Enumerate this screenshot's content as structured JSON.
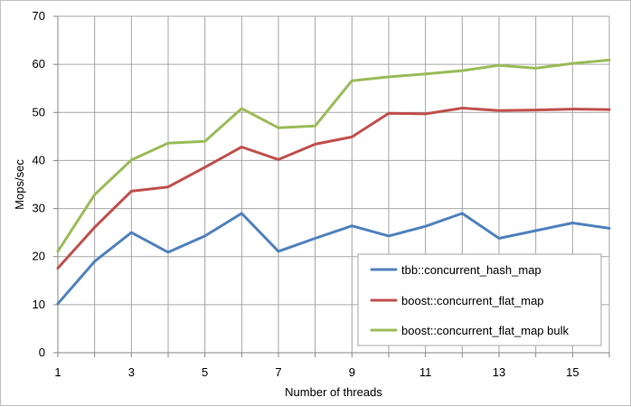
{
  "chart_data": {
    "type": "line",
    "title": "",
    "xlabel": "Number of threads",
    "ylabel": "Mops/sec",
    "x": [
      1,
      2,
      3,
      4,
      5,
      6,
      7,
      8,
      9,
      10,
      11,
      12,
      13,
      14,
      15,
      16
    ],
    "xlim": [
      1,
      16
    ],
    "ylim": [
      0,
      70
    ],
    "x_ticks": [
      "1",
      "3",
      "5",
      "7",
      "9",
      "11",
      "13",
      "15"
    ],
    "y_ticks": [
      "0",
      "10",
      "20",
      "30",
      "40",
      "50",
      "60",
      "70"
    ],
    "grid": true,
    "legend_position": "bottom-right",
    "series": [
      {
        "name": "tbb::concurrent_hash_map",
        "color": "#4f81bd",
        "values": [
          10.2,
          19.0,
          25.0,
          20.9,
          24.3,
          29.0,
          21.1,
          23.8,
          26.4,
          24.3,
          26.3,
          29.0,
          23.8,
          25.4,
          27.0,
          25.9
        ]
      },
      {
        "name": "boost::concurrent_flat_map",
        "color": "#c0504d",
        "values": [
          17.6,
          26.1,
          33.6,
          34.5,
          38.6,
          42.8,
          40.2,
          43.4,
          44.9,
          49.8,
          49.7,
          50.9,
          50.4,
          50.5,
          50.7,
          50.6
        ]
      },
      {
        "name": "boost::concurrent_flat_map bulk",
        "color": "#9bbb59",
        "values": [
          21.1,
          32.9,
          40.1,
          43.6,
          44.0,
          50.8,
          46.8,
          47.2,
          56.6,
          57.4,
          58.0,
          58.7,
          59.8,
          59.2,
          60.2,
          60.9
        ]
      }
    ]
  }
}
